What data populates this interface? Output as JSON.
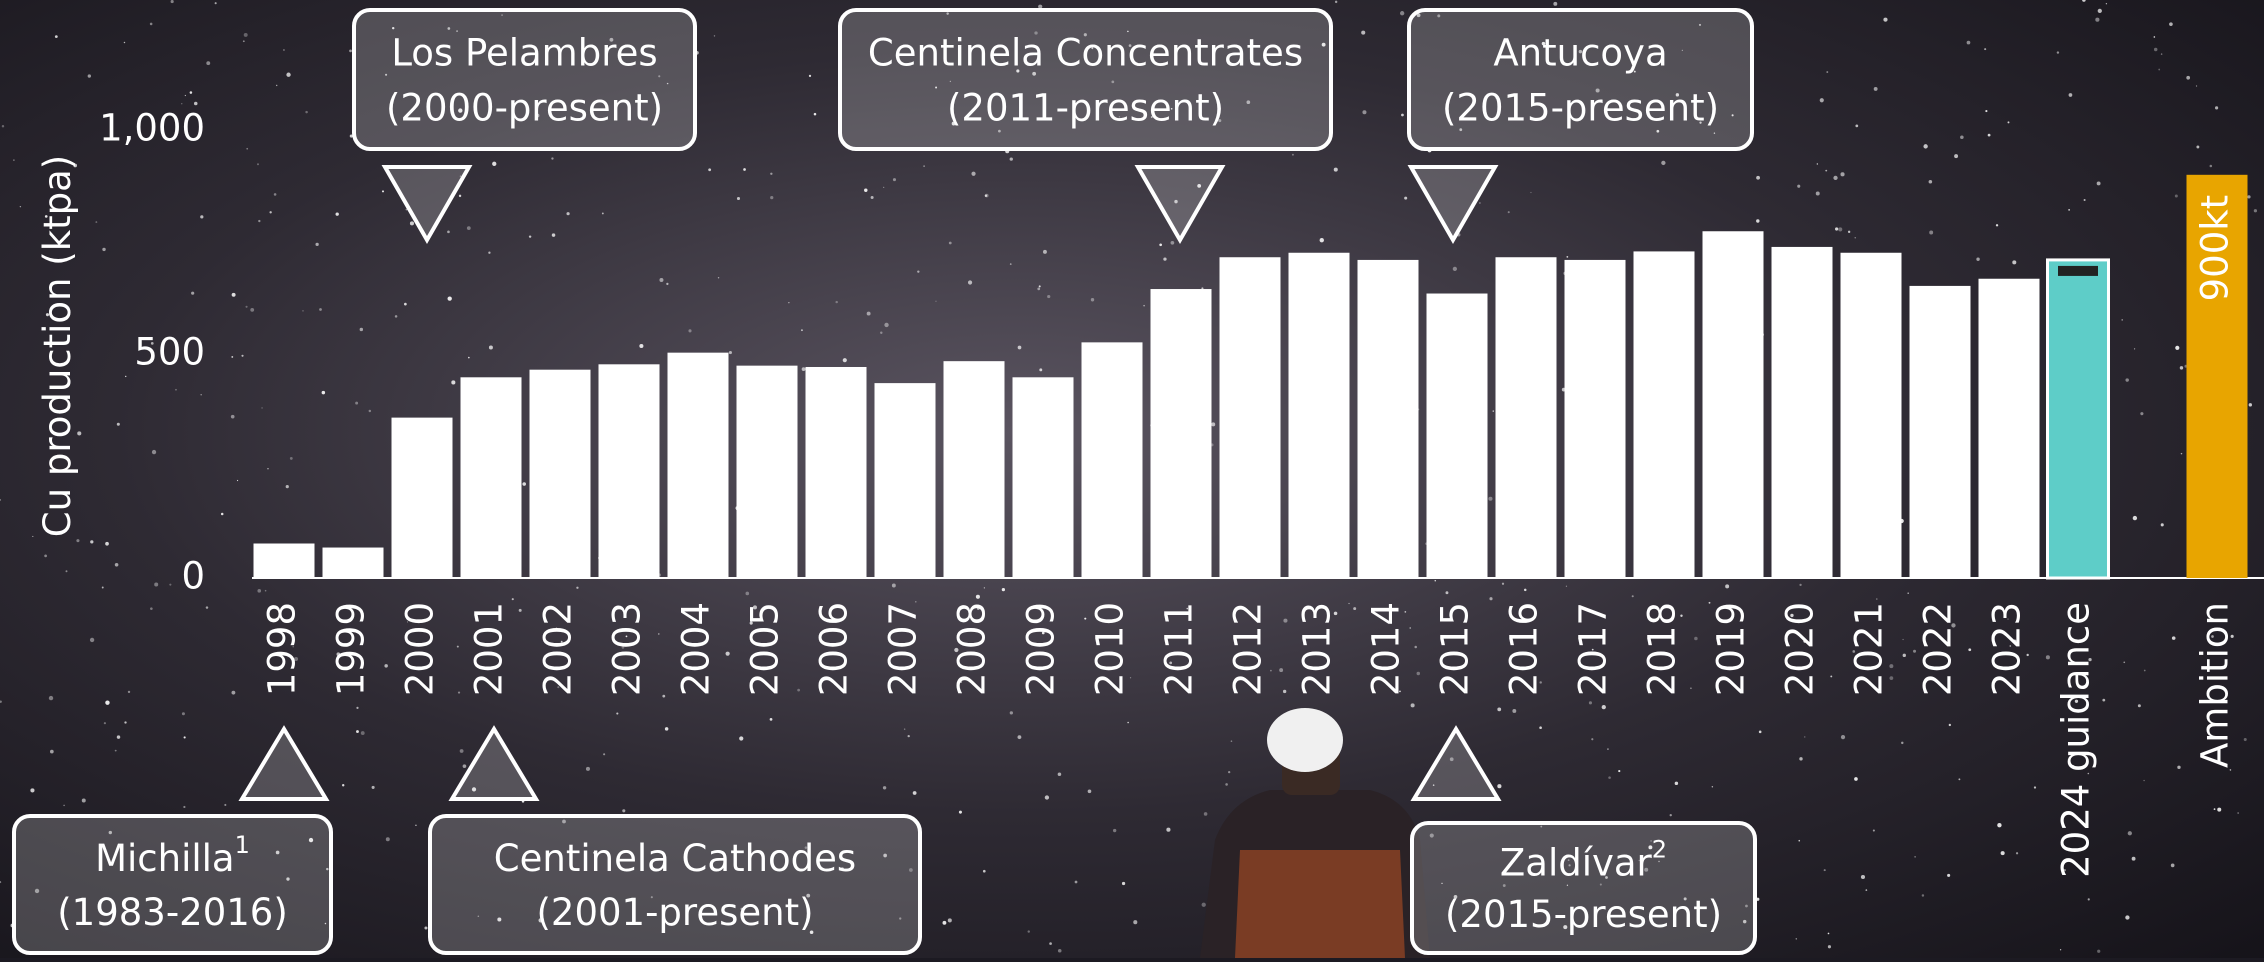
{
  "chart_data": {
    "type": "bar",
    "y_label": "Cu production (ktpa)",
    "categories": [
      "1998",
      "1999",
      "2000",
      "2001",
      "2002",
      "2003",
      "2004",
      "2005",
      "2006",
      "2007",
      "2008",
      "2009",
      "2010",
      "2011",
      "2012",
      "2013",
      "2014",
      "2015",
      "2016",
      "2017",
      "2018",
      "2019",
      "2020",
      "2021",
      "2022",
      "2023",
      "2024 guidance",
      "Ambition"
    ],
    "values": [
      77,
      68,
      358,
      448,
      465,
      477,
      503,
      474,
      471,
      435,
      484,
      448,
      526,
      645,
      716,
      726,
      710,
      635,
      716,
      710,
      729,
      774,
      739,
      726,
      652,
      668,
      710,
      900
    ],
    "value_labels": [
      null,
      null,
      null,
      null,
      null,
      null,
      null,
      null,
      null,
      null,
      null,
      null,
      null,
      null,
      null,
      null,
      null,
      null,
      null,
      null,
      null,
      null,
      null,
      null,
      null,
      null,
      null,
      "900kt"
    ],
    "colors": [
      "#ffffff",
      "#ffffff",
      "#ffffff",
      "#ffffff",
      "#ffffff",
      "#ffffff",
      "#ffffff",
      "#ffffff",
      "#ffffff",
      "#ffffff",
      "#ffffff",
      "#ffffff",
      "#ffffff",
      "#ffffff",
      "#ffffff",
      "#ffffff",
      "#ffffff",
      "#ffffff",
      "#ffffff",
      "#ffffff",
      "#ffffff",
      "#ffffff",
      "#ffffff",
      "#ffffff",
      "#ffffff",
      "#ffffff",
      "#5ecdc8",
      "#e8a500"
    ],
    "ylim": [
      0,
      1000
    ],
    "yticks": [
      0,
      500,
      {
        "value": 1000,
        "label": "1,000"
      }
    ],
    "annotations": [
      {
        "title": "Los Pelambres",
        "period": "(2000-present)"
      },
      {
        "title": "Centinela Concentrates",
        "period": "(2011-present)"
      },
      {
        "title": "Antucoya",
        "period": "(2015-present)"
      },
      {
        "title": "Michilla",
        "note": "1",
        "period": "(1983-2016)"
      },
      {
        "title": "Centinela Cathodes",
        "period": "(2001-present)"
      },
      {
        "title": "Zaldívar",
        "note": "2",
        "period": "(2015-present)"
      }
    ]
  }
}
